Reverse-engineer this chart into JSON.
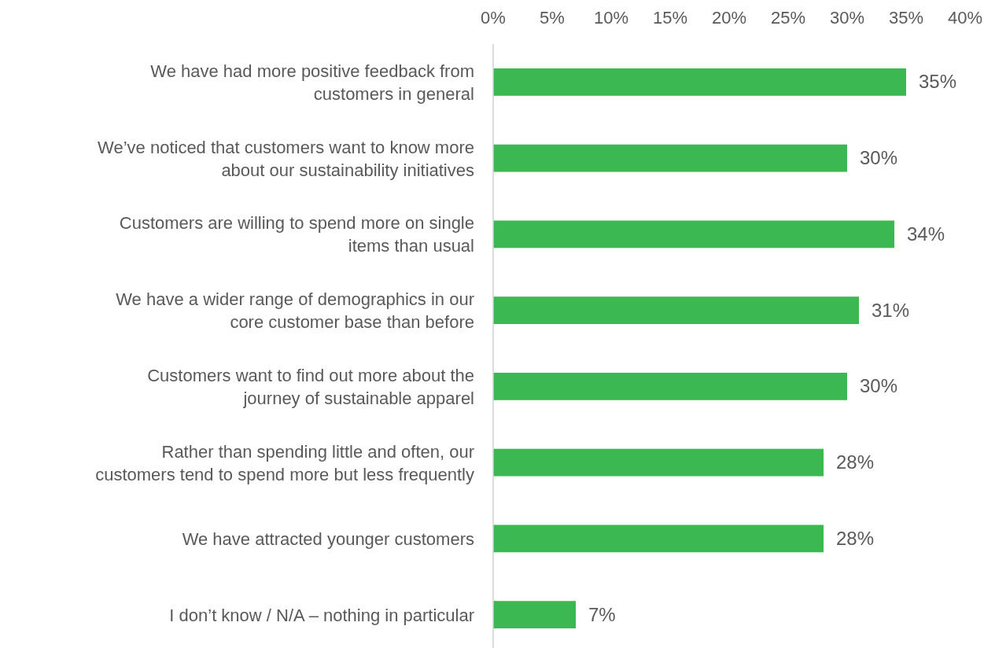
{
  "chart_data": {
    "type": "bar",
    "orientation": "horizontal",
    "categories": [
      "We have had more positive feedback from customers in general",
      "We’ve noticed that customers want to know more about our sustainability initiatives",
      "Customers are willing to spend more on single items than usual",
      "We have a wider range of demographics in our core customer base than before",
      "Customers want to find out more about the journey of sustainable apparel",
      "Rather than spending little and often, our customers tend to spend more but less frequently",
      "We have attracted younger customers",
      "I don’t know / N/A – nothing in particular"
    ],
    "values": [
      35,
      30,
      34,
      31,
      30,
      28,
      28,
      7
    ],
    "color": "#3cb853",
    "xlim": [
      0,
      40
    ],
    "xticks": [
      {
        "value": 0,
        "label": "0%"
      },
      {
        "value": 5,
        "label": "5%"
      },
      {
        "value": 10,
        "label": "10%"
      },
      {
        "value": 15,
        "label": "15%"
      },
      {
        "value": 20,
        "label": "20%"
      },
      {
        "value": 25,
        "label": "25%"
      },
      {
        "value": 30,
        "label": "30%"
      },
      {
        "value": 35,
        "label": "35%"
      },
      {
        "value": 40,
        "label": "40%"
      }
    ],
    "value_labels": [
      "35%",
      "30%",
      "34%",
      "31%",
      "30%",
      "28%",
      "28%",
      "7%"
    ],
    "grid": false
  }
}
